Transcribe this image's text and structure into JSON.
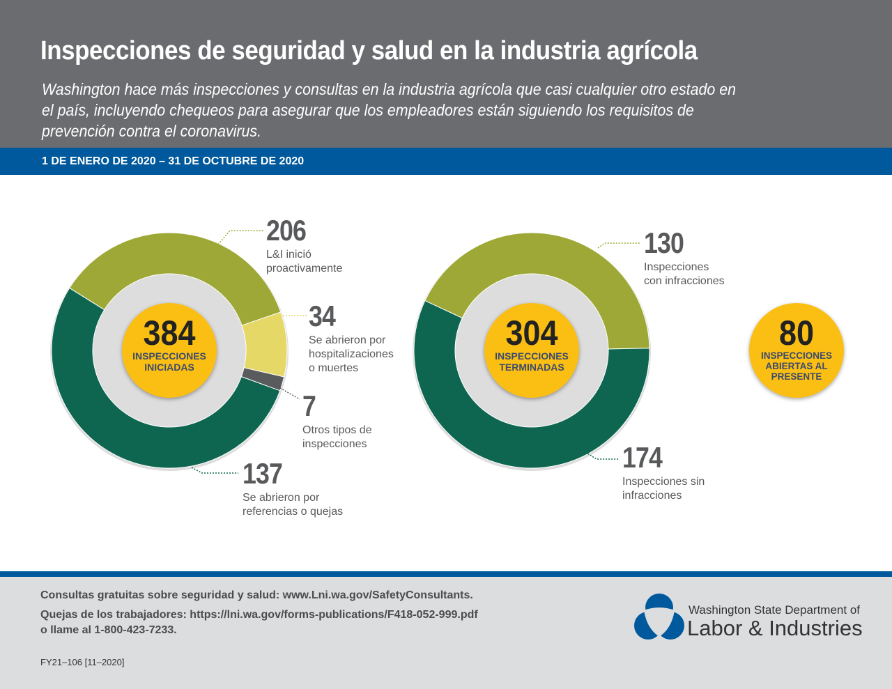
{
  "header": {
    "title": "Inspecciones de seguridad y salud en la industria agrícola",
    "subtitle": "Washington hace más inspecciones y consultas en la industria agrícola que casi cualquier otro estado en el país, incluyendo chequeos para asegurar que los empleadores están siguiendo los requisitos de prevención contra el coronavirus.",
    "date_range": "1 DE ENERO DE 2020 – 31 DE OCTUBRE DE 2020"
  },
  "chart_data": [
    {
      "type": "donut",
      "total": 384,
      "total_label": "INSPECCIONES\nINICIADAS",
      "series": [
        {
          "value": 206,
          "label": "L&I inició\nproactivamente",
          "color": "#9ea836"
        },
        {
          "value": 34,
          "label": "Se abrieron por\nhospitalizaciones\no muertes",
          "color": "#e6d866"
        },
        {
          "value": 7,
          "label": "Otros tipos de\ninspecciones",
          "color": "#5a5b5d"
        },
        {
          "value": 137,
          "label": "Se abrieron por\nreferencias o quejas",
          "color": "#0e6650"
        }
      ]
    },
    {
      "type": "donut",
      "total": 304,
      "total_label": "INSPECCIONES\nTERMINADAS",
      "series": [
        {
          "value": 130,
          "label": "Inspecciones\ncon infracciones",
          "color": "#9ea836"
        },
        {
          "value": 174,
          "label": "Inspecciones sin\ninfracciones",
          "color": "#0e6650"
        }
      ]
    },
    {
      "type": "single",
      "total": 80,
      "total_label": "INSPECCIONES\nABIERTAS AL\nPRESENTE"
    }
  ],
  "footer": {
    "line1": "Consultas gratuitas sobre seguridad y salud: www.Lni.wa.gov/SafetyConsultants.",
    "line2": "Quejas de los trabajadores: https://lni.wa.gov/forms-publications/F418-052-999.pdf",
    "line3": "o llame al 1-800-423-7233.",
    "code": "FY21–106 [11–2020]",
    "logo_line1": "Washington State Department of",
    "logo_line2": "Labor & Industries"
  },
  "colors": {
    "header": "#6b6c70",
    "band": "#00599c",
    "center": "#fbbf14"
  }
}
